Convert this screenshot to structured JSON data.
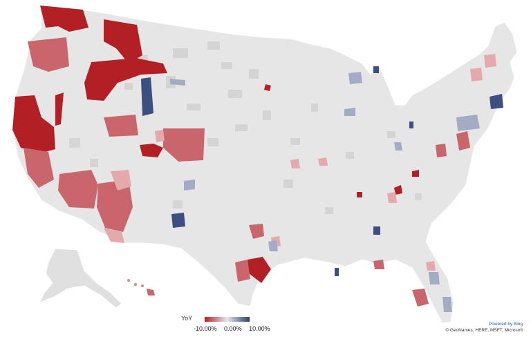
{
  "legend": {
    "title": "YoY",
    "min_label": "-10.00%",
    "mid_label": "0.00%",
    "max_label": "10.00%",
    "colors": {
      "negative": "#b22025",
      "neutral": "#e6e6e6",
      "positive": "#2c3e6e"
    }
  },
  "attribution": {
    "powered": "Powered by Bing",
    "copyright": "© GeoNames, HERE, MSFT, Microsoft"
  },
  "map": {
    "land_color": "#e6e6e6",
    "gray_county_color": "#d2d2d2"
  }
}
